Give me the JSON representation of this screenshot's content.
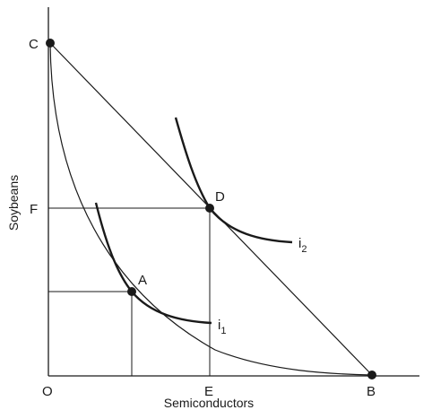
{
  "diagram": {
    "x_axis_label": "Semiconductors",
    "y_axis_label": "Soybeans",
    "points": {
      "origin": "O",
      "c": "C",
      "b": "B",
      "a": "A",
      "d": "D",
      "e": "E",
      "f": "F"
    },
    "curves": {
      "i1": {
        "base": "i",
        "sub": "1"
      },
      "i2": {
        "base": "i",
        "sub": "2"
      }
    },
    "colors": {
      "ink": "#1a1a1a",
      "background": "#ffffff"
    }
  }
}
